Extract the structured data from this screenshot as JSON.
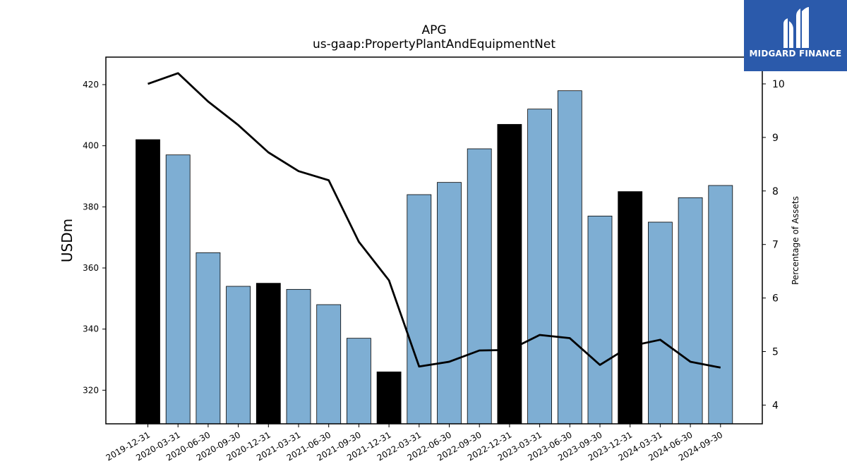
{
  "logo": {
    "text": "MIDGARD FINANCE",
    "icon": "midgard-logo-icon",
    "background": "#2b5aab"
  },
  "chart_data": {
    "type": "bar",
    "title": "APG",
    "subtitle": "us-gaap:PropertyPlantAndEquipmentNet",
    "ylabel": "USDm",
    "y2label": "Percentage of Assets",
    "ylim": [
      309,
      429
    ],
    "y2lim": [
      3.65,
      10.5
    ],
    "yticks": [
      320,
      340,
      360,
      380,
      400,
      420
    ],
    "y2ticks": [
      4,
      5,
      6,
      7,
      8,
      9,
      10
    ],
    "categories": [
      "2019-12-31",
      "2020-03-31",
      "2020-06-30",
      "2020-09-30",
      "2020-12-31",
      "2021-03-31",
      "2021-06-30",
      "2021-09-30",
      "2021-12-31",
      "2022-03-31",
      "2022-06-30",
      "2022-09-30",
      "2022-12-31",
      "2023-03-31",
      "2023-06-30",
      "2023-09-30",
      "2023-12-31",
      "2024-03-31",
      "2024-06-30",
      "2024-09-30"
    ],
    "series": [
      {
        "values": [
          402,
          397,
          365,
          354,
          355,
          353,
          348,
          337,
          326,
          384,
          388,
          399,
          407,
          412,
          418,
          377,
          385,
          375,
          383,
          387
        ]
      },
      {
        "values": [
          10.0,
          10.2,
          9.67,
          9.23,
          8.72,
          8.37,
          8.2,
          7.05,
          6.33,
          4.72,
          4.81,
          5.02,
          5.03,
          5.31,
          5.25,
          4.75,
          5.1,
          5.22,
          4.81,
          4.7
        ]
      }
    ],
    "year_end_categories": [
      "2019-12-31",
      "2020-12-31",
      "2021-12-31",
      "2022-12-31",
      "2023-12-31"
    ],
    "colors": {
      "bar": "#7eaed3",
      "year_end_bar": "#000000",
      "line": "#000000"
    },
    "grid": false
  }
}
